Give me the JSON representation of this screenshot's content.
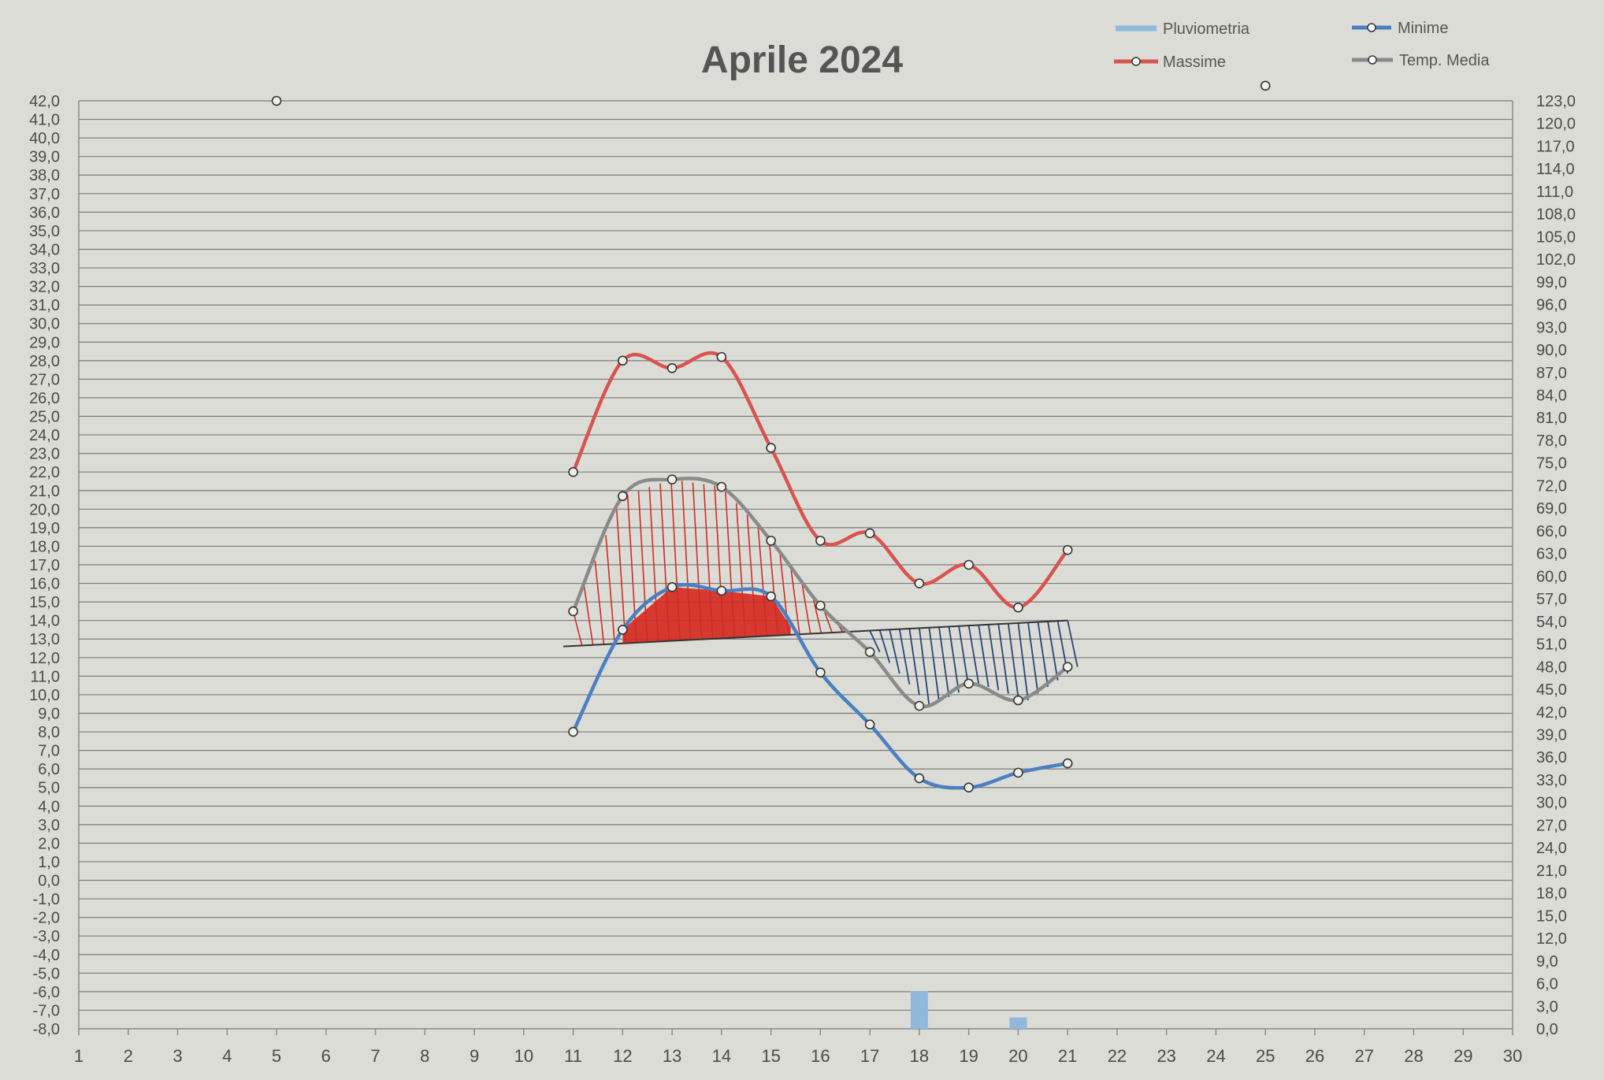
{
  "chart_data": {
    "type": "line",
    "title": "Aprile 2024",
    "x": [
      1,
      2,
      3,
      4,
      5,
      6,
      7,
      8,
      9,
      10,
      11,
      12,
      13,
      14,
      15,
      16,
      17,
      18,
      19,
      20,
      21,
      22,
      23,
      24,
      25,
      26,
      27,
      28,
      29,
      30
    ],
    "x_tick_labels": [
      "1",
      "2",
      "3",
      "4",
      "5",
      "6",
      "7",
      "8",
      "9",
      "10",
      "11",
      "12",
      "13",
      "14",
      "15",
      "16",
      "17",
      "18",
      "19",
      "20",
      "21",
      "22",
      "23",
      "24",
      "25",
      "26",
      "27",
      "28",
      "29",
      "30"
    ],
    "y_left_range": [
      -8,
      42
    ],
    "y_left_tick_labels": [
      "42,0",
      "41,0",
      "40,0",
      "39,0",
      "38,0",
      "37,0",
      "36,0",
      "35,0",
      "34,0",
      "33,0",
      "32,0",
      "31,0",
      "30,0",
      "29,0",
      "28,0",
      "27,0",
      "26,0",
      "25,0",
      "24,0",
      "23,0",
      "22,0",
      "21,0",
      "20,0",
      "19,0",
      "18,0",
      "17,0",
      "16,0",
      "15,0",
      "14,0",
      "13,0",
      "12,0",
      "11,0",
      "10,0",
      "9,0",
      "8,0",
      "7,0",
      "6,0",
      "5,0",
      "4,0",
      "3,0",
      "2,0",
      "1,0",
      "0,0",
      "-1,0",
      "-2,0",
      "-3,0",
      "-4,0",
      "-5,0",
      "-6,0",
      "-7,0",
      "-8,0"
    ],
    "y_right_range": [
      0,
      123
    ],
    "y_right_tick_labels": [
      "123,0",
      "120,0",
      "117,0",
      "114,0",
      "111,0",
      "108,0",
      "105,0",
      "102,0",
      "99,0",
      "96,0",
      "93,0",
      "90,0",
      "87,0",
      "84,0",
      "81,0",
      "78,0",
      "75,0",
      "72,0",
      "69,0",
      "66,0",
      "63,0",
      "60,0",
      "57,0",
      "54,0",
      "51,0",
      "48,0",
      "45,0",
      "42,0",
      "39,0",
      "36,0",
      "33,0",
      "30,0",
      "27,0",
      "24,0",
      "21,0",
      "18,0",
      "15,0",
      "12,0",
      "9,0",
      "6,0",
      "3,0",
      "0,0"
    ],
    "grid": true,
    "legend_position": "top-right",
    "series": [
      {
        "name": "Massime",
        "color": "#d9534f",
        "axis": "left",
        "points": [
          [
            5,
            42.0
          ],
          [
            11,
            22.0
          ],
          [
            12,
            28.0
          ],
          [
            13,
            27.6
          ],
          [
            14,
            28.2
          ],
          [
            15,
            23.3
          ],
          [
            16,
            18.3
          ],
          [
            17,
            18.7
          ],
          [
            18,
            16.0
          ],
          [
            19,
            17.0
          ],
          [
            20,
            14.7
          ],
          [
            21,
            17.8
          ]
        ]
      },
      {
        "name": "Minime",
        "color": "#4a7fc1",
        "axis": "left",
        "points": [
          [
            11,
            8.0
          ],
          [
            12,
            13.5
          ],
          [
            13,
            15.8
          ],
          [
            14,
            15.6
          ],
          [
            15,
            15.3
          ],
          [
            16,
            11.2
          ],
          [
            17,
            8.4
          ],
          [
            18,
            5.5
          ],
          [
            19,
            5.0
          ],
          [
            20,
            5.8
          ],
          [
            21,
            6.3
          ]
        ]
      },
      {
        "name": "Temp. Media",
        "color": "#8a8a8a",
        "axis": "left",
        "points": [
          [
            11,
            14.5
          ],
          [
            12,
            20.7
          ],
          [
            13,
            21.6
          ],
          [
            14,
            21.2
          ],
          [
            15,
            18.3
          ],
          [
            16,
            14.8
          ],
          [
            17,
            12.3
          ],
          [
            18,
            9.4
          ],
          [
            19,
            10.6
          ],
          [
            20,
            9.7
          ],
          [
            21,
            11.5
          ]
        ]
      },
      {
        "name": "Pluviometria",
        "color": "#8fb8dc",
        "axis": "right",
        "type": "bar",
        "points": [
          [
            18,
            5.0
          ],
          [
            20,
            1.5
          ]
        ]
      }
    ],
    "extra_marker": {
      "x": 25,
      "y_right": 125.0
    },
    "annotations": {
      "reference_line": {
        "x_start": 10.8,
        "y_start": 12.6,
        "x_end": 21.0,
        "y_end": 14.0,
        "color": "#333333"
      },
      "hatch_above": {
        "color": "#d42a22",
        "x_range": [
          11,
          16.5
        ]
      },
      "hatch_below": {
        "color": "#23457a",
        "x_range": [
          17,
          21
        ]
      },
      "filled_region": {
        "color": "#d42a22",
        "x_range": [
          12,
          15.4
        ]
      }
    }
  }
}
